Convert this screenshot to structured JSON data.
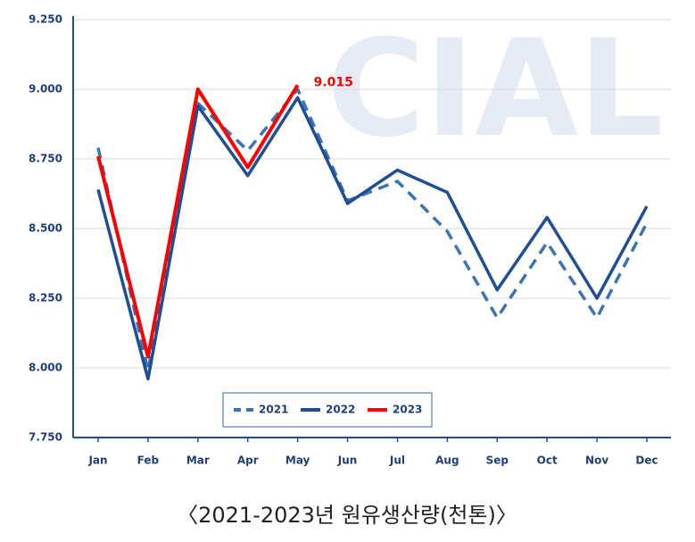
{
  "chart_data": {
    "type": "line",
    "watermark": "CIAL",
    "caption": "〈2021-2023년 원유생산량(천톤)〉",
    "categories": [
      "Jan",
      "Feb",
      "Mar",
      "Apr",
      "May",
      "Jun",
      "Jul",
      "Aug",
      "Sep",
      "Oct",
      "Nov",
      "Dec"
    ],
    "series": [
      {
        "name": "2021",
        "color": "#3a74b4",
        "dashed": true,
        "values": [
          8.79,
          7.99,
          8.95,
          8.78,
          9.0,
          8.6,
          8.67,
          8.49,
          8.18,
          8.45,
          8.18,
          8.52
        ]
      },
      {
        "name": "2022",
        "color": "#1f4e96",
        "dashed": false,
        "values": [
          8.64,
          7.96,
          8.94,
          8.69,
          8.97,
          8.59,
          8.71,
          8.63,
          8.28,
          8.54,
          8.25,
          8.58
        ]
      },
      {
        "name": "2023",
        "color": "#ff0000",
        "dashed": false,
        "values": [
          8.76,
          8.04,
          9.0,
          8.72,
          9.015,
          null,
          null,
          null,
          null,
          null,
          null,
          null
        ],
        "value_labels": [
          null,
          null,
          null,
          null,
          "9.015",
          null,
          null,
          null,
          null,
          null,
          null,
          null
        ]
      }
    ],
    "ylim": [
      7.75,
      9.25
    ],
    "yticks": [
      {
        "value": 7.75,
        "label": "7.750"
      },
      {
        "value": 8.0,
        "label": "8.000"
      },
      {
        "value": 8.25,
        "label": "8.250"
      },
      {
        "value": 8.5,
        "label": "8.500"
      },
      {
        "value": 8.75,
        "label": "8.750"
      },
      {
        "value": 9.0,
        "label": "9.000"
      },
      {
        "value": 9.25,
        "label": "9.250"
      }
    ],
    "grid": true,
    "legend": "bottom"
  }
}
